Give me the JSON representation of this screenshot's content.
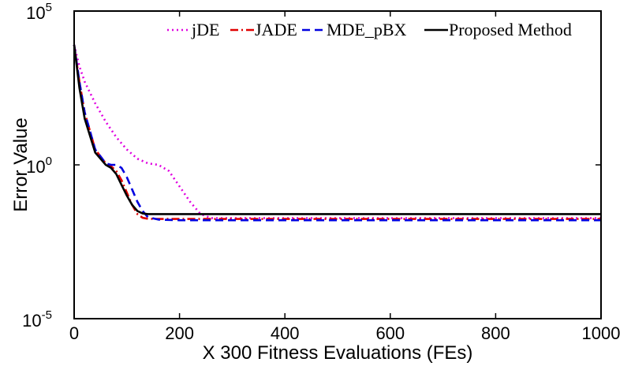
{
  "chart_data": {
    "type": "line",
    "xlabel": "X 300 Fitness Evaluations (FEs)",
    "ylabel": "Error Value",
    "xlim": [
      0,
      1000
    ],
    "ylim_log10": [
      -5,
      5
    ],
    "yscale": "log",
    "x_ticks": [
      0,
      200,
      400,
      600,
      800,
      1000
    ],
    "x_tick_labels": [
      "0",
      "200",
      "400",
      "600",
      "800",
      "1000"
    ],
    "y_ticks_log10": [
      -5,
      0,
      5
    ],
    "y_tick_bases": [
      "10",
      "10",
      "10"
    ],
    "y_tick_exponents": [
      "-5",
      "0",
      "5"
    ],
    "grid": false,
    "legend_position": "top",
    "series": [
      {
        "name": "jDE",
        "color": "#e000e0",
        "style": "dotted",
        "x": [
          0,
          10,
          20,
          40,
          60,
          80,
          100,
          120,
          140,
          160,
          180,
          200,
          220,
          240,
          260,
          300,
          400,
          600,
          800,
          1000
        ],
        "log10_y": [
          3.9,
          3.2,
          2.7,
          2.0,
          1.4,
          0.9,
          0.5,
          0.2,
          0.05,
          0.0,
          -0.2,
          -0.7,
          -1.2,
          -1.6,
          -1.73,
          -1.73,
          -1.73,
          -1.73,
          -1.73,
          -1.73
        ]
      },
      {
        "name": "JADE",
        "color": "#e00000",
        "style": "dashdot",
        "x": [
          0,
          10,
          20,
          40,
          60,
          70,
          80,
          90,
          100,
          110,
          120,
          130,
          140,
          160,
          200,
          400,
          600,
          800,
          1000
        ],
        "log10_y": [
          3.9,
          2.7,
          1.7,
          0.5,
          0.05,
          -0.05,
          -0.2,
          -0.5,
          -0.9,
          -1.3,
          -1.6,
          -1.72,
          -1.75,
          -1.76,
          -1.76,
          -1.76,
          -1.76,
          -1.76,
          -1.76
        ]
      },
      {
        "name": "MDE_pBX",
        "color": "#0000e0",
        "style": "dashed",
        "x": [
          0,
          10,
          20,
          40,
          60,
          70,
          80,
          90,
          100,
          110,
          120,
          130,
          140,
          160,
          200,
          400,
          600,
          800,
          1000
        ],
        "log10_y": [
          3.9,
          2.7,
          1.7,
          0.5,
          0.05,
          0.0,
          0.0,
          -0.1,
          -0.4,
          -0.8,
          -1.2,
          -1.5,
          -1.7,
          -1.78,
          -1.8,
          -1.8,
          -1.8,
          -1.8,
          -1.8
        ]
      },
      {
        "name": "Proposed Method",
        "color": "#000000",
        "style": "solid",
        "x": [
          0,
          10,
          20,
          40,
          60,
          70,
          80,
          90,
          100,
          110,
          120,
          130,
          140,
          200,
          400,
          600,
          800,
          1000
        ],
        "log10_y": [
          3.9,
          2.5,
          1.5,
          0.4,
          0.0,
          -0.1,
          -0.3,
          -0.65,
          -1.0,
          -1.3,
          -1.5,
          -1.58,
          -1.6,
          -1.6,
          -1.6,
          -1.6,
          -1.6,
          -1.6
        ]
      }
    ]
  }
}
